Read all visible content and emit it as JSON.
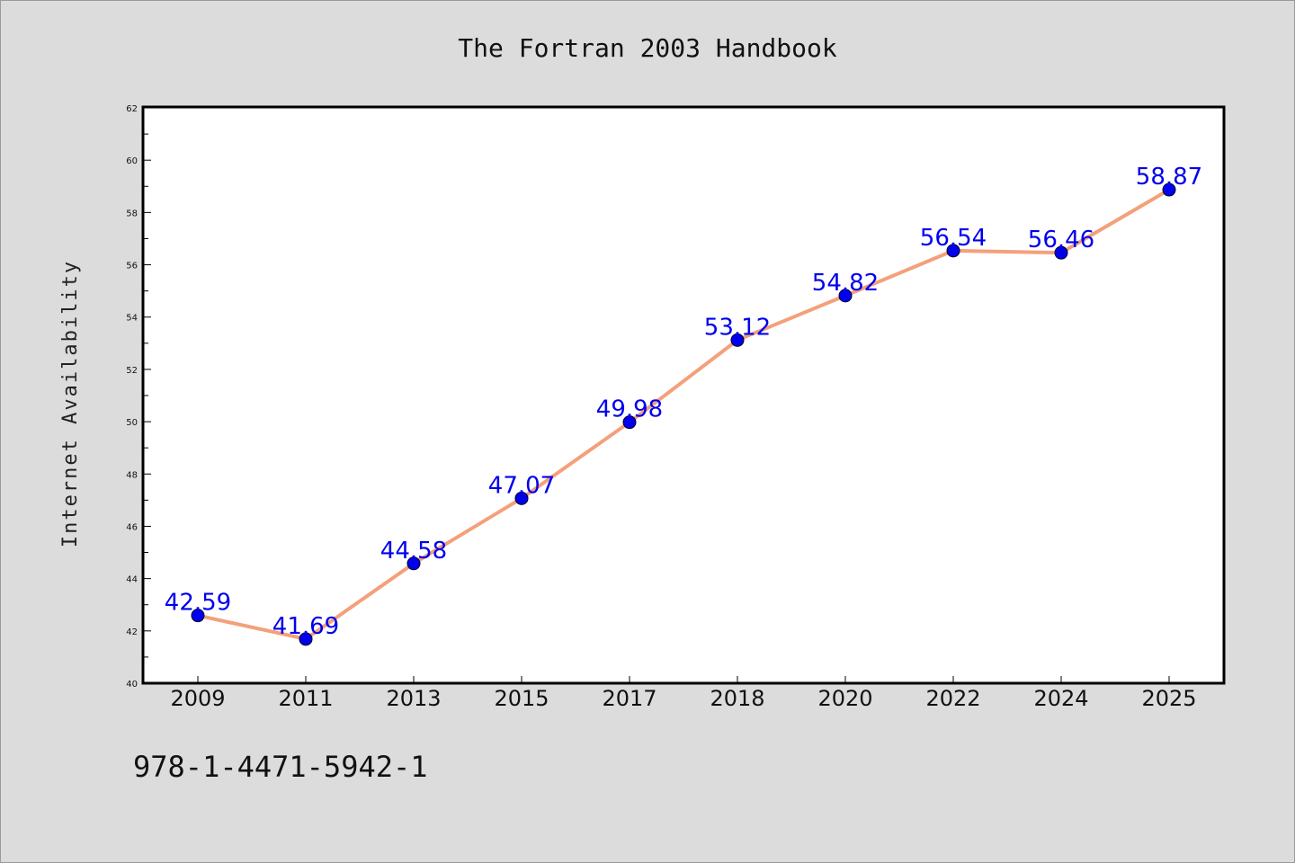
{
  "chart_data": {
    "type": "line",
    "title": "The Fortran 2003 Handbook",
    "xlabel": "",
    "ylabel": "Internet Availability",
    "categories": [
      "2009",
      "2011",
      "2013",
      "2015",
      "2017",
      "2018",
      "2020",
      "2022",
      "2024",
      "2025"
    ],
    "series": [
      {
        "values": [
          42.59,
          41.69,
          44.58,
          47.07,
          49.98,
          53.12,
          54.82,
          56.54,
          56.46,
          58.87
        ],
        "data_labels": [
          "42.59",
          "41.69",
          "44.58",
          "47.07",
          "49.98",
          "53.12",
          "54.82",
          "56.54",
          "56.46",
          "58.87"
        ],
        "line_color": "#f4a07a",
        "marker_color": "#0000ee"
      }
    ],
    "ylim": [
      40,
      62
    ],
    "yticks": [
      "40",
      "42",
      "44",
      "46",
      "48",
      "50",
      "52",
      "54",
      "56",
      "58",
      "60",
      "62"
    ],
    "grid": false,
    "legend": "none"
  },
  "footer": {
    "isbn": "978-1-4471-5942-1"
  }
}
